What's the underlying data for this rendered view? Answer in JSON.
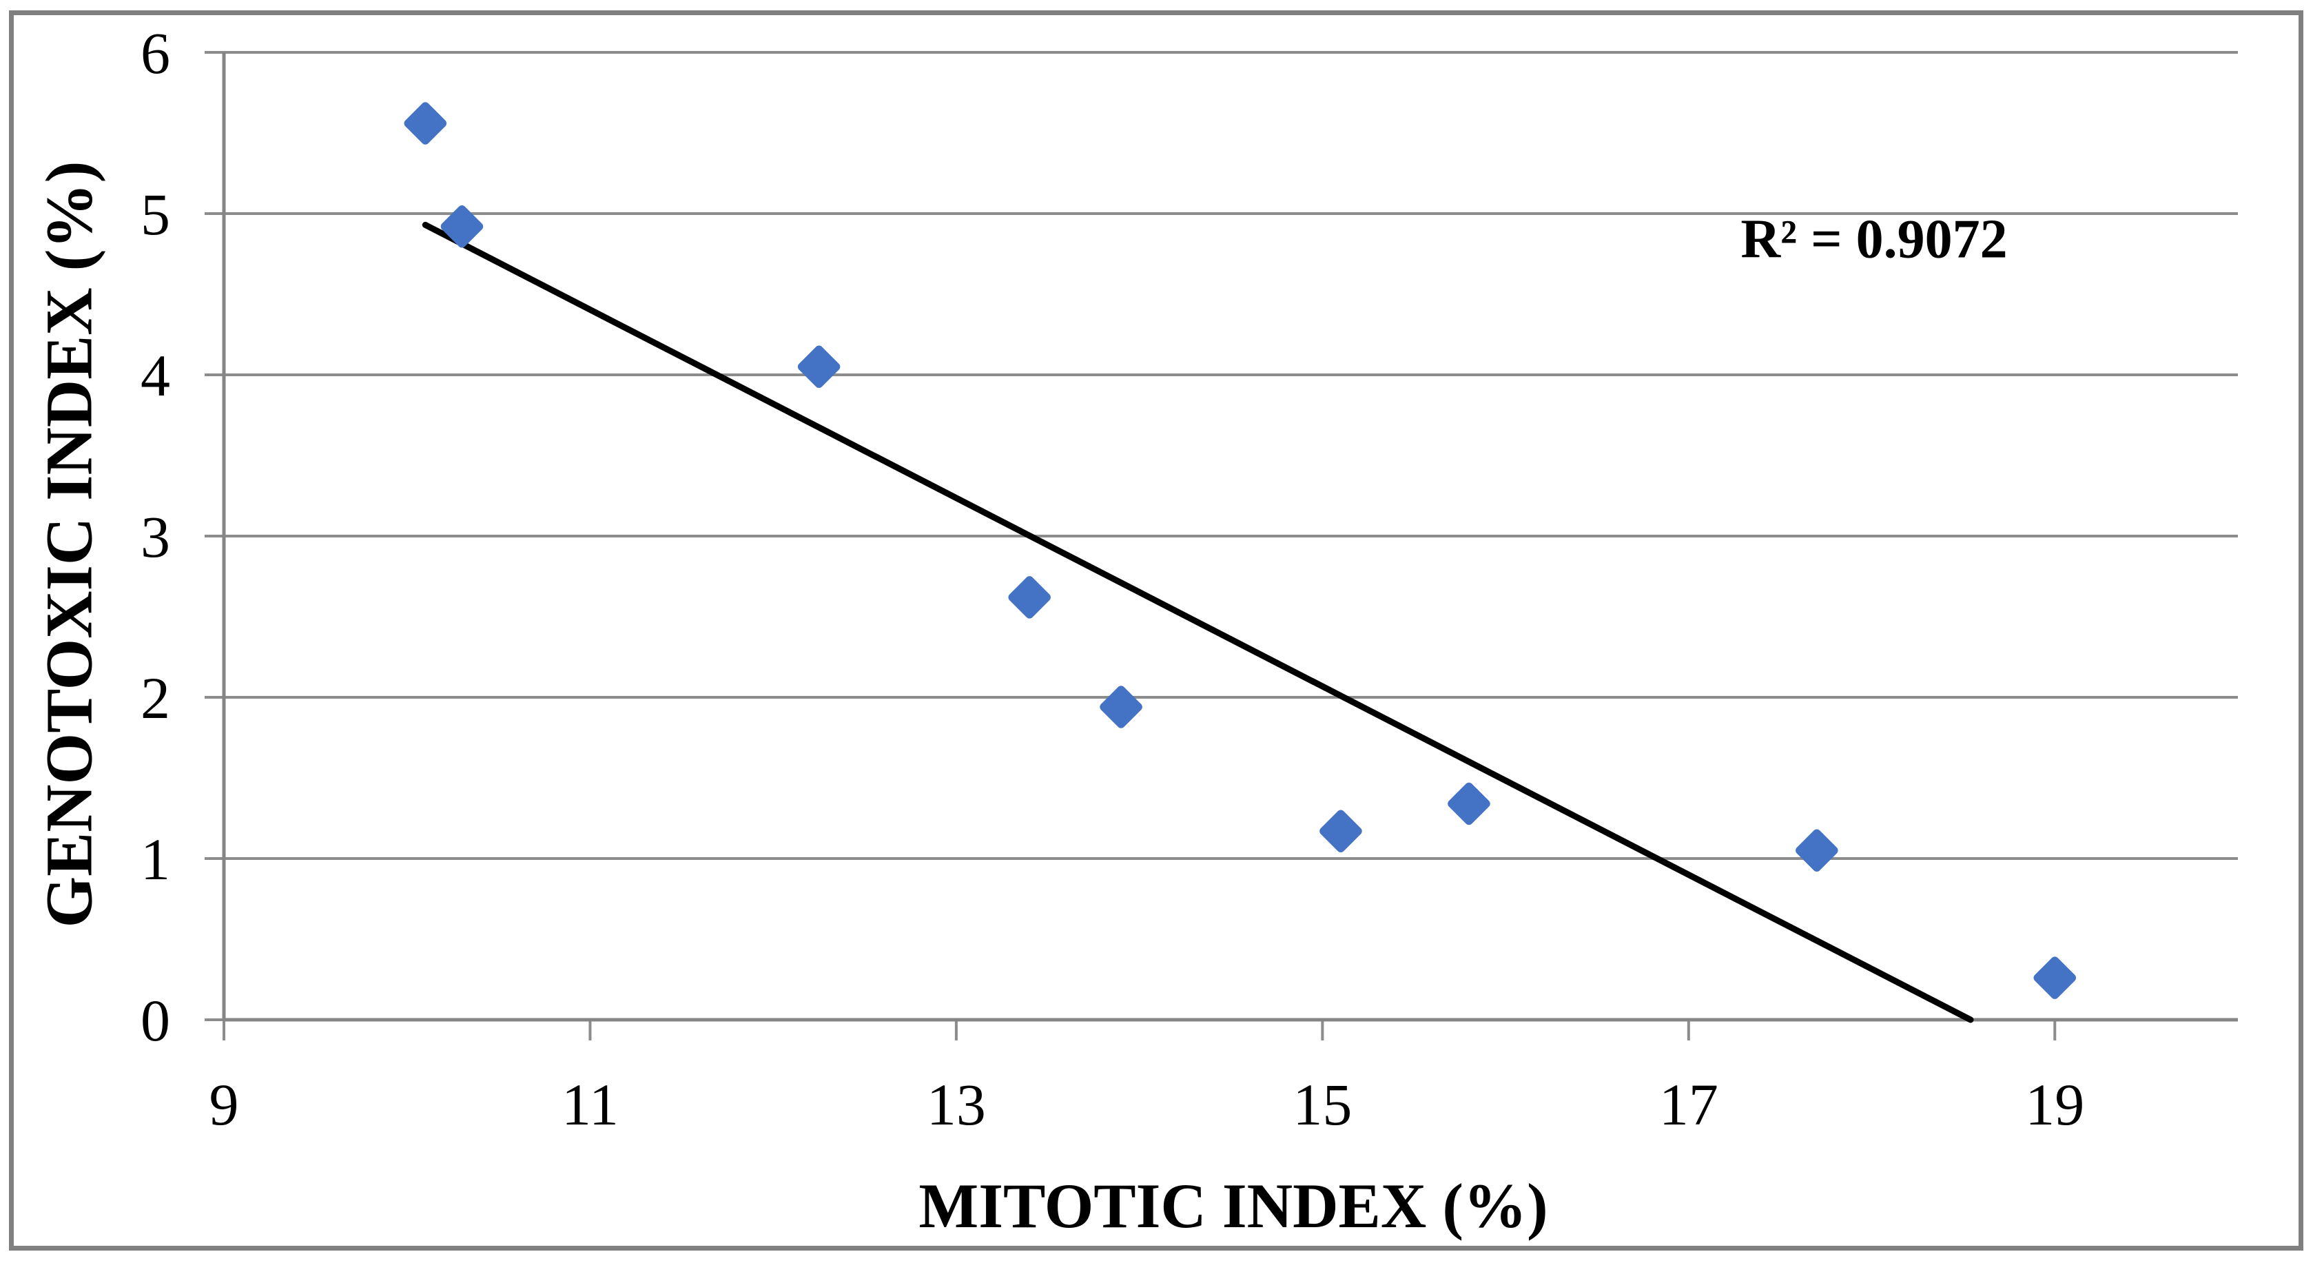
{
  "chart_data": {
    "type": "scatter",
    "title": "",
    "xlabel": "MITOTIC INDEX (%)",
    "ylabel": "GENOTOXIC INDEX (%)",
    "xlim": [
      9,
      20
    ],
    "ylim": [
      0,
      6
    ],
    "x_ticks": [
      9,
      11,
      13,
      15,
      17,
      19
    ],
    "y_ticks": [
      0,
      1,
      2,
      3,
      4,
      5,
      6
    ],
    "grid": "horizontal-only",
    "legend": "none",
    "points": [
      {
        "x": 10.1,
        "y": 5.56
      },
      {
        "x": 10.3,
        "y": 4.92
      },
      {
        "x": 12.25,
        "y": 4.05
      },
      {
        "x": 13.4,
        "y": 2.62
      },
      {
        "x": 13.9,
        "y": 1.94
      },
      {
        "x": 15.1,
        "y": 1.17
      },
      {
        "x": 15.8,
        "y": 1.34
      },
      {
        "x": 17.7,
        "y": 1.05
      },
      {
        "x": 19.0,
        "y": 0.26
      }
    ],
    "trendline": {
      "x1": 10.1,
      "y1": 4.93,
      "x2": 18.54,
      "y2": 0.0
    },
    "annotation": {
      "r_squared_label": "R² = 0.9072"
    },
    "marker": {
      "shape": "diamond",
      "color": "#4472C4"
    },
    "colors": {
      "trendline": "#000000",
      "gridline": "#8C8C8C",
      "axis": "#858585",
      "text": "#000000",
      "border": "#808080",
      "background": "#FFFFFF"
    }
  }
}
